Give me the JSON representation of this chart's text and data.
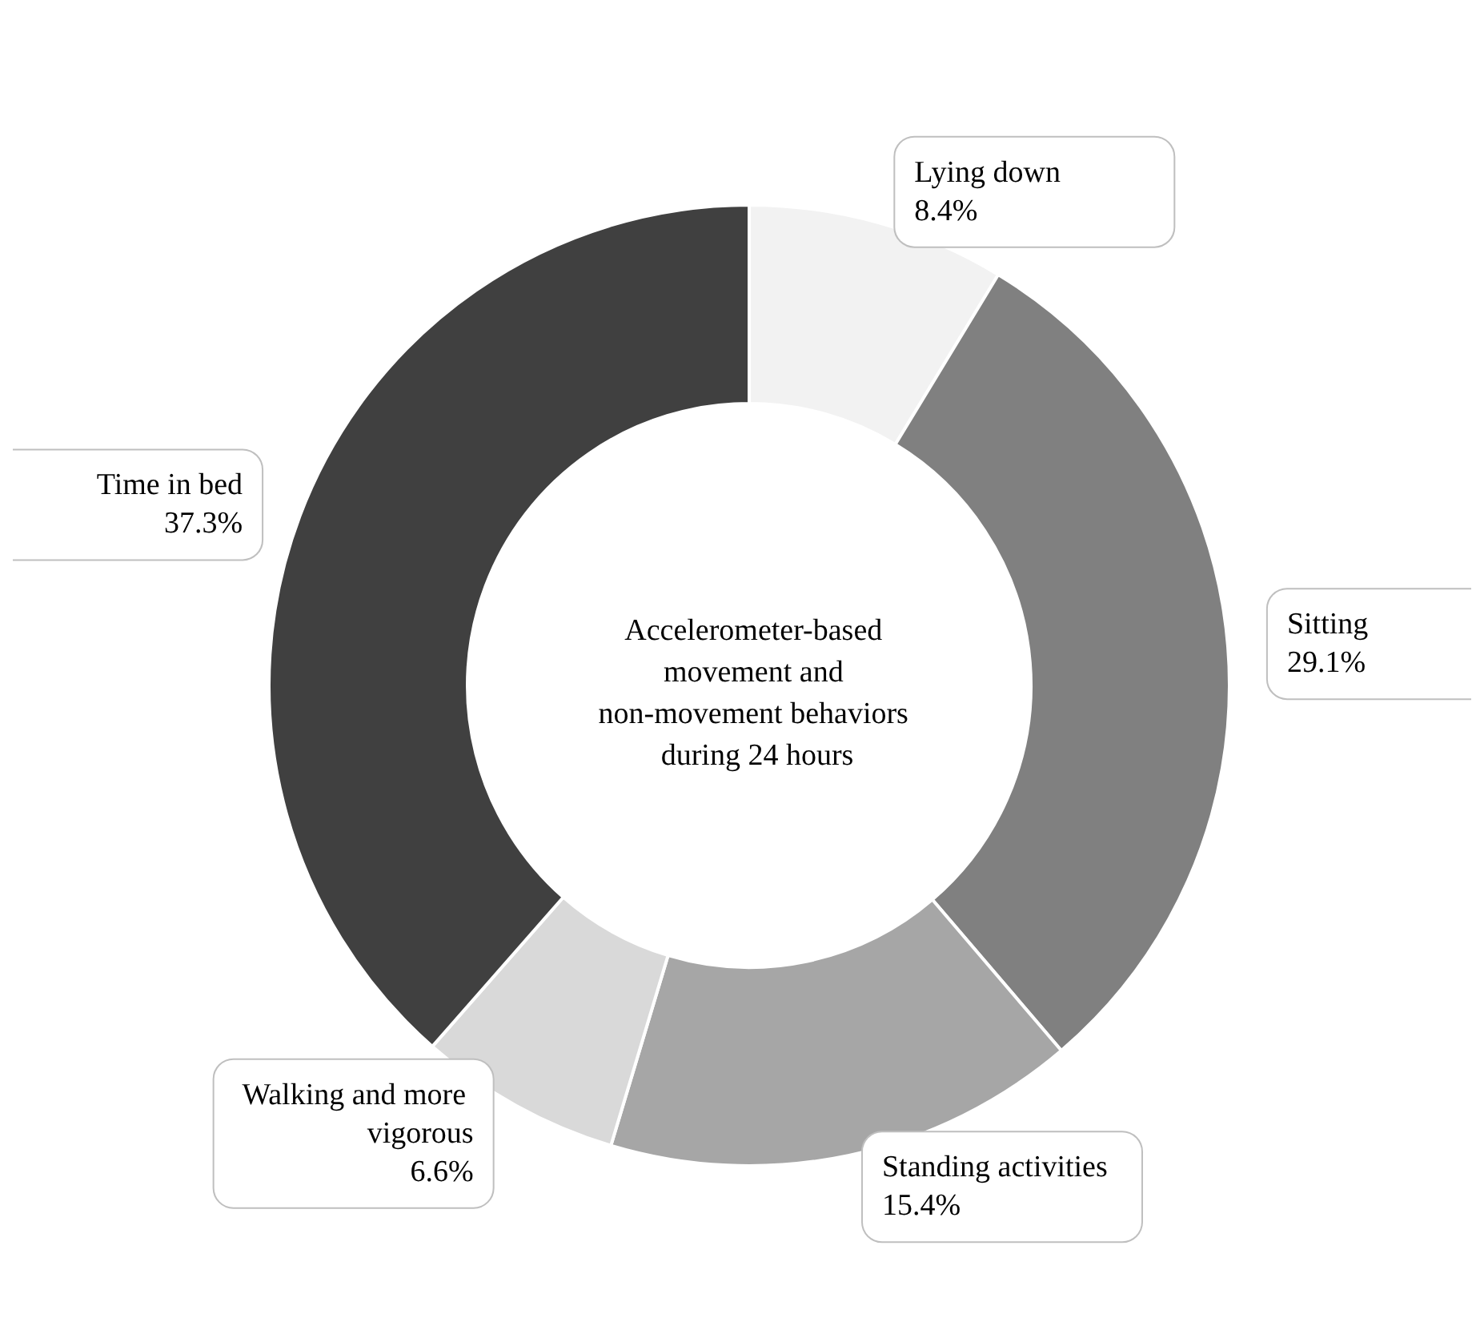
{
  "chart_data": {
    "type": "donut",
    "title": "Accelerometer-based movement and non-movement behaviors during 24 hours",
    "categories": [
      "Lying down",
      "Sitting",
      "Standing activities",
      "Walking and more vigorous",
      "Time in bed"
    ],
    "values": [
      8.4,
      29.1,
      15.4,
      6.6,
      37.3
    ],
    "value_labels": [
      "8.4%",
      "29.1%",
      "15.4%",
      "6.6%",
      "37.3%"
    ],
    "colors": [
      "#f2f2f2",
      "#808080",
      "#a6a6a6",
      "#d9d9d9",
      "#404040"
    ],
    "legend": false
  }
}
